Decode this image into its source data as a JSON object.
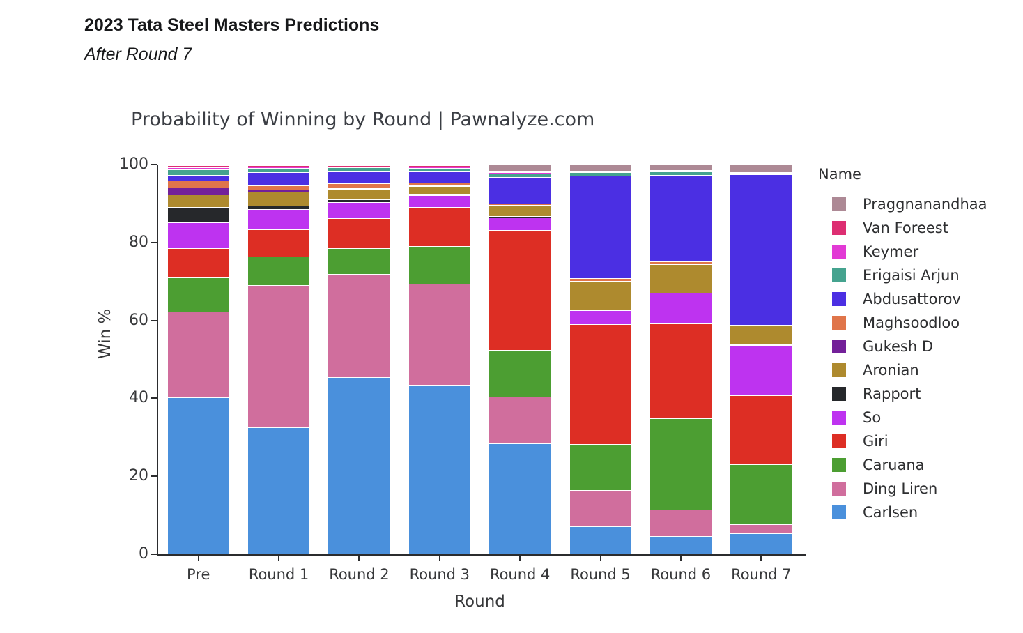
{
  "header": {
    "title": "2023 Tata Steel Masters Predictions",
    "subtitle": "After Round 7"
  },
  "chart_data": {
    "type": "bar",
    "stacked": true,
    "title": "Probability of Winning by Round | Pawnalyze.com",
    "xlabel": "Round",
    "ylabel": "Win %",
    "ylim": [
      0,
      100
    ],
    "yticks": [
      0,
      20,
      40,
      60,
      80,
      100
    ],
    "grid": false,
    "legend_title": "Name",
    "legend_position": "right",
    "legend_order": "reverse-of-stack",
    "stack_order": "bottom-to-top",
    "categories": [
      "Pre",
      "Round 1",
      "Round 2",
      "Round 3",
      "Round 4",
      "Round 5",
      "Round 6",
      "Round 7"
    ],
    "series": [
      {
        "name": "Carlsen",
        "color": "#4a90dc",
        "values": [
          40.0,
          32.4,
          45.3,
          43.3,
          28.2,
          6.9,
          4.5,
          5.2
        ]
      },
      {
        "name": "Ding Liren",
        "color": "#d06e9d",
        "values": [
          22.0,
          36.5,
          26.5,
          26.0,
          12.0,
          9.3,
          6.8,
          2.4
        ]
      },
      {
        "name": "Caruana",
        "color": "#4c9e32",
        "values": [
          8.8,
          7.3,
          6.6,
          9.6,
          12.1,
          11.9,
          23.4,
          15.3
        ]
      },
      {
        "name": "Giri",
        "color": "#dd2e24",
        "values": [
          7.5,
          7.0,
          7.6,
          10.0,
          30.7,
          30.7,
          24.4,
          17.7
        ]
      },
      {
        "name": "So",
        "color": "#be33f0",
        "values": [
          6.7,
          5.3,
          4.1,
          3.0,
          3.3,
          3.6,
          7.8,
          13.0
        ]
      },
      {
        "name": "Rapport",
        "color": "#26282b",
        "values": [
          3.9,
          0.8,
          0.8,
          0.5,
          0.3,
          0.3,
          0.1,
          0.05
        ]
      },
      {
        "name": "Aronian",
        "color": "#ae8a2e",
        "values": [
          3.2,
          3.7,
          2.6,
          2.0,
          2.8,
          7.1,
          7.2,
          5.0
        ]
      },
      {
        "name": "Gukesh D",
        "color": "#732099",
        "values": [
          1.85,
          0.4,
          0.2,
          0.15,
          0.1,
          0.1,
          0.05,
          0.05
        ]
      },
      {
        "name": "Maghsoodloo",
        "color": "#e0754a",
        "values": [
          1.75,
          1.1,
          1.3,
          0.6,
          0.4,
          0.7,
          0.8,
          0.1
        ]
      },
      {
        "name": "Abdusattorov",
        "color": "#4b2fe3",
        "values": [
          1.4,
          3.4,
          3.1,
          2.9,
          6.8,
          26.4,
          22.1,
          38.6
        ]
      },
      {
        "name": "Erigaisi Arjun",
        "color": "#45a38f",
        "values": [
          1.5,
          1.1,
          1.0,
          1.0,
          0.9,
          0.8,
          0.9,
          0.3
        ]
      },
      {
        "name": "Keymer",
        "color": "#e23ad5",
        "values": [
          0.6,
          0.3,
          0.25,
          0.3,
          0.2,
          0.1,
          0.1,
          0.1
        ]
      },
      {
        "name": "Van Foreest",
        "color": "#dd2e72",
        "values": [
          0.4,
          0.45,
          0.3,
          0.3,
          0.2,
          0.2,
          0.2,
          0.1
        ]
      },
      {
        "name": "Praggnanandhaa",
        "color": "#ad8995",
        "values": [
          0.4,
          0.35,
          0.35,
          0.4,
          2.0,
          1.8,
          1.6,
          2.2
        ]
      }
    ]
  }
}
